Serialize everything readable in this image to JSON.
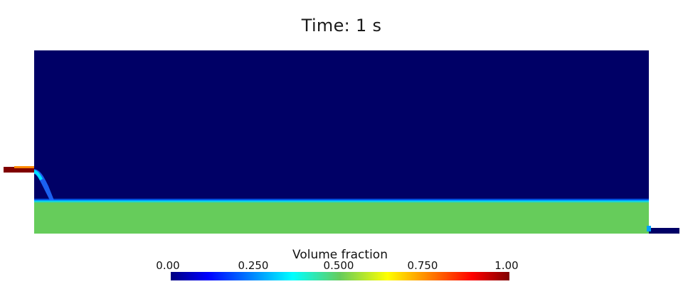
{
  "title": "Time: 1 s",
  "colors": {
    "empty": "#000066",
    "fluid": "#66cc5b",
    "inlet": "#800000",
    "outlet": "#000066"
  },
  "colorbar": {
    "title": "Volume fraction",
    "colormap": "jet",
    "range": [
      0,
      1
    ],
    "ticks": [
      {
        "value": 0.0,
        "label": "0.00"
      },
      {
        "value": 0.25,
        "label": "0.250"
      },
      {
        "value": 0.5,
        "label": "0.500"
      },
      {
        "value": 0.75,
        "label": "0.750"
      },
      {
        "value": 1.0,
        "label": "1.00"
      }
    ]
  }
}
